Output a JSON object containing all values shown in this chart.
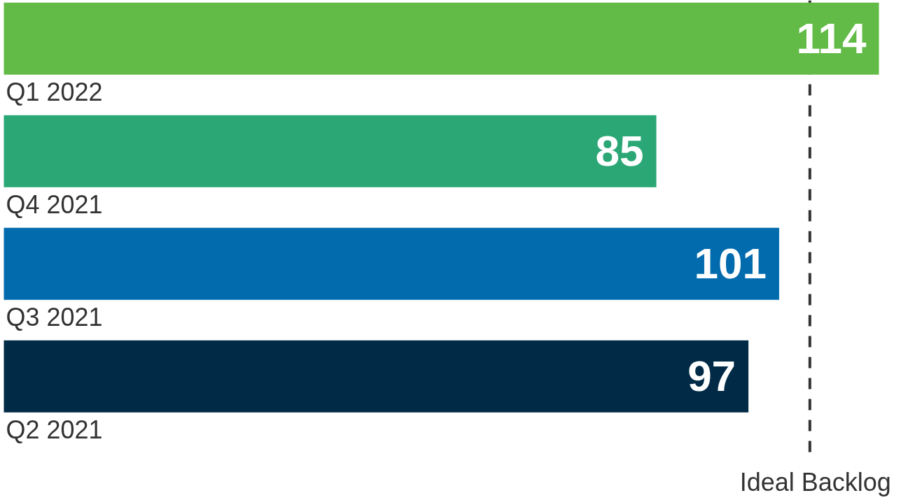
{
  "chart_data": {
    "type": "bar",
    "orientation": "horizontal",
    "categories": [
      "Q1 2022",
      "Q4 2021",
      "Q3 2021",
      "Q2 2021"
    ],
    "values": [
      114,
      85,
      101,
      97
    ],
    "colors": [
      "#62bb46",
      "#2aa775",
      "#016bad",
      "#002a45"
    ],
    "data_labels": true,
    "ref_lines": [
      {
        "axis": "x",
        "value": 105,
        "label": "Ideal Backlog",
        "color": "#333333",
        "line_style": "dashed"
      }
    ]
  }
}
